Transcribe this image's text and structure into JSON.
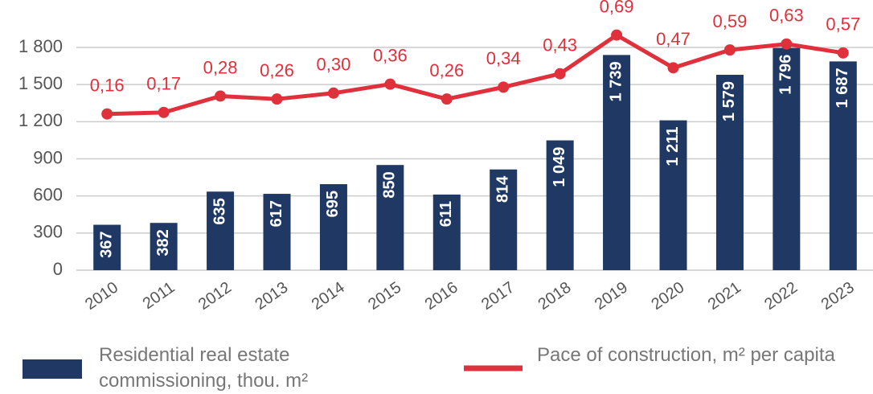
{
  "chart_data": {
    "type": "bar",
    "categories": [
      "2010",
      "2011",
      "2012",
      "2013",
      "2014",
      "2015",
      "2016",
      "2017",
      "2018",
      "2019",
      "2020",
      "2021",
      "2022",
      "2023"
    ],
    "series": [
      {
        "name": "Residential real estate commissioning, thou. m²",
        "type": "bar",
        "color": "#1f3864",
        "values": [
          367,
          382,
          635,
          617,
          695,
          850,
          611,
          814,
          1049,
          1739,
          1211,
          1579,
          1796,
          1687
        ],
        "value_labels": [
          "367",
          "382",
          "635",
          "617",
          "695",
          "850",
          "611",
          "814",
          "1 049",
          "1 739",
          "1 211",
          "1 579",
          "1 796",
          "1 687"
        ]
      },
      {
        "name": "Pace of construction, m² per capita",
        "type": "line",
        "axis": "y2",
        "color": "#e0303c",
        "values": [
          0.16,
          0.17,
          0.28,
          0.26,
          0.3,
          0.36,
          0.26,
          0.34,
          0.43,
          0.69,
          0.47,
          0.59,
          0.63,
          0.57
        ],
        "value_labels": [
          "0,16",
          "0,17",
          "0,28",
          "0,26",
          "0,30",
          "0,36",
          "0,26",
          "0,34",
          "0,43",
          "0,69",
          "0,47",
          "0,59",
          "0,63",
          "0,57"
        ]
      }
    ],
    "ylim": [
      0,
      1900
    ],
    "yticks": [
      0,
      300,
      600,
      900,
      {
        "value": 1200,
        "label": "1 200"
      },
      {
        "value": 1500,
        "label": "1 500"
      },
      {
        "value": 1800,
        "label": "1 800"
      }
    ],
    "y2lim": [
      -0.89,
      0.69
    ],
    "grid": true,
    "legend": "bottom"
  }
}
